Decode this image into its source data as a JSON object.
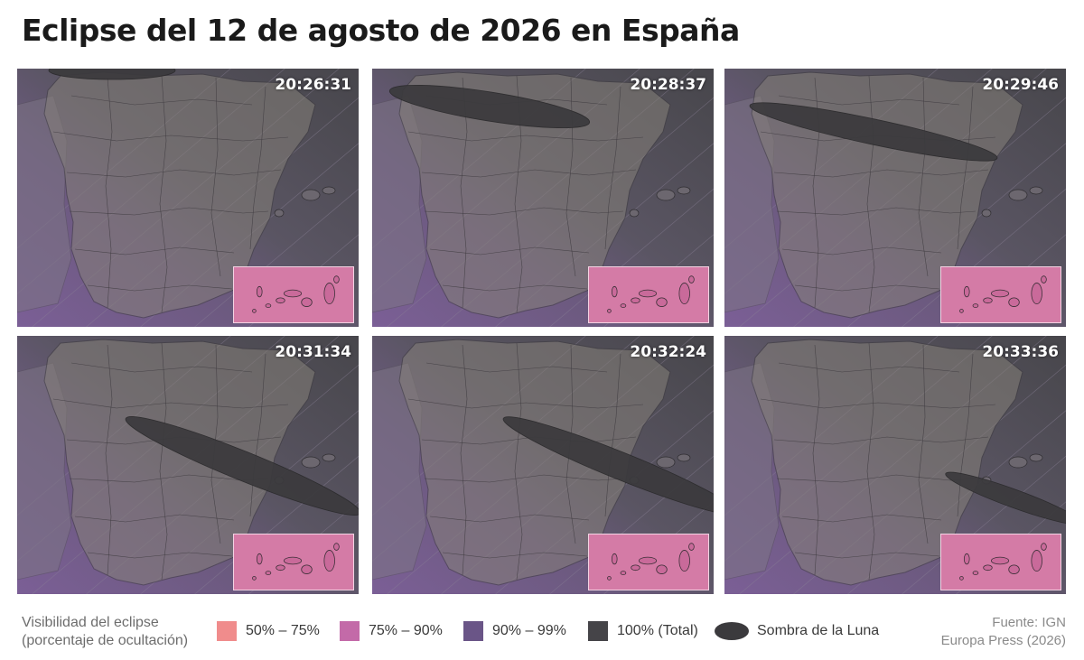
{
  "title": "Eclipse del 12 de agosto de 2026 en España",
  "colors": {
    "pct_50_75": "#f08c8c",
    "pct_75_90": "#c36aa8",
    "pct_90_99": "#6a5587",
    "pct_100": "#454448",
    "moon_shadow": "#3b3a3d"
  },
  "panels": [
    {
      "time": "20:26:31"
    },
    {
      "time": "20:28:37"
    },
    {
      "time": "20:29:46"
    },
    {
      "time": "20:31:34"
    },
    {
      "time": "20:32:24"
    },
    {
      "time": "20:33:36"
    }
  ],
  "legend": {
    "title_line1": "Visibilidad del eclipse",
    "title_line2": "(porcentaje de ocultación)",
    "items": [
      {
        "label": "50% – 75%",
        "color": "#f08c8c"
      },
      {
        "label": "75% – 90%",
        "color": "#c36aa8"
      },
      {
        "label": "90% – 99%",
        "color": "#6a5587"
      },
      {
        "label": "100% (Total)",
        "color": "#454448"
      },
      {
        "label": "Sombra de la Luna",
        "color": "#3b3a3d",
        "icon": "ellipse"
      }
    ]
  },
  "source": {
    "line1": "Fuente: IGN",
    "line2": "Europa Press (2026)"
  }
}
